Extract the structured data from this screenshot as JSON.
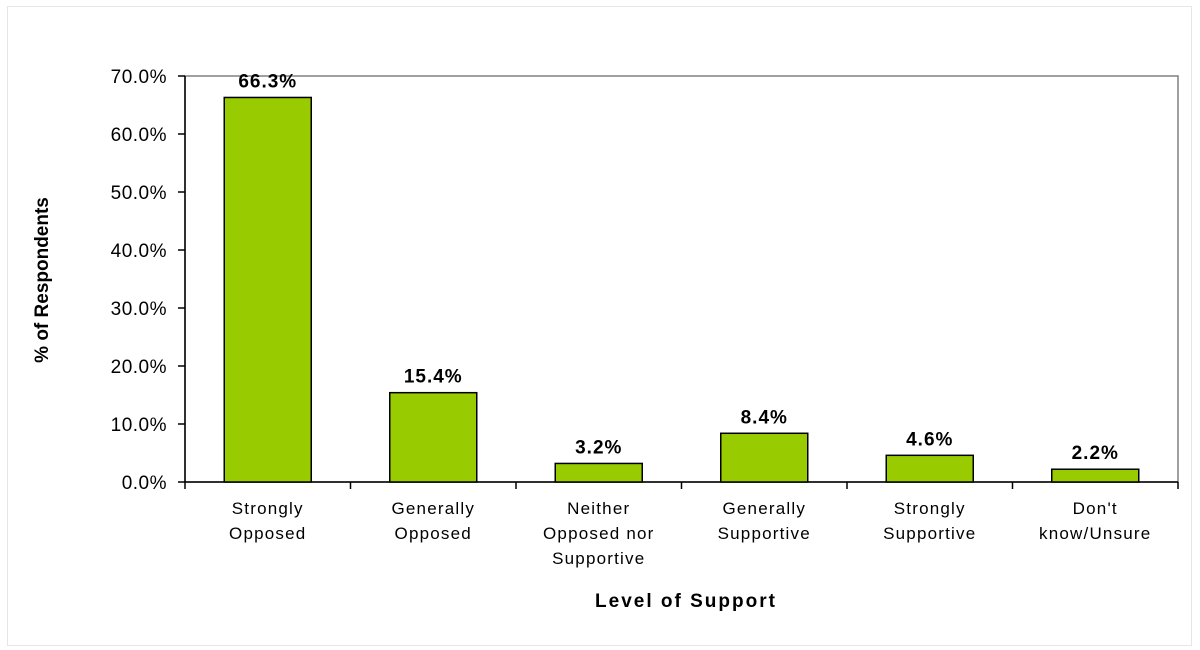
{
  "chart_data": {
    "type": "bar",
    "categories": [
      [
        "Strongly",
        "Opposed"
      ],
      [
        "Generally",
        "Opposed"
      ],
      [
        "Neither",
        "Opposed nor",
        "Supportive"
      ],
      [
        "Generally",
        "Supportive"
      ],
      [
        "Strongly",
        "Supportive"
      ],
      [
        "Don't",
        "know/Unsure"
      ]
    ],
    "values": [
      66.3,
      15.4,
      3.2,
      8.4,
      4.6,
      2.2
    ],
    "data_labels": [
      "66.3%",
      "15.4%",
      "3.2%",
      "8.4%",
      "4.6%",
      "2.2%"
    ],
    "yticks": [
      "0.0%",
      "10.0%",
      "20.0%",
      "30.0%",
      "40.0%",
      "50.0%",
      "60.0%",
      "70.0%"
    ],
    "ylim": [
      0,
      70
    ],
    "xlabel": "Level of Support",
    "ylabel": "% of Respondents",
    "bar_color": "#99cc00",
    "grid": false,
    "legend": "none"
  }
}
